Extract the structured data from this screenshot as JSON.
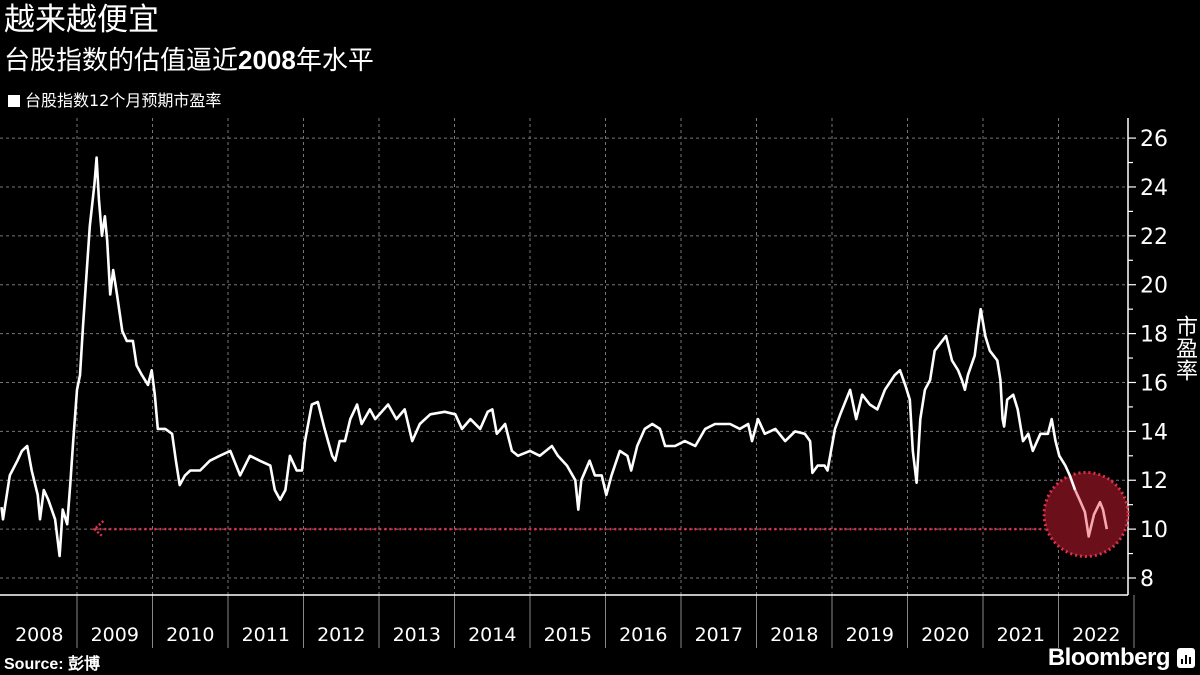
{
  "header": {
    "title": "越来越便宜",
    "subtitle_pre": "台股指数的估值逼近",
    "subtitle_num": "2008",
    "subtitle_post": "年水平"
  },
  "footer": {
    "source_label": "Source: ",
    "source_value": "彭博",
    "brand": "Bloomberg"
  },
  "colors": {
    "line": "#ffffff",
    "highlight": "#e0304a",
    "circle_fill": "#6b0f1a",
    "highlight_line": "#f5a7b2",
    "grid": "#777777"
  },
  "chart_data": {
    "type": "line",
    "title": "越来越便宜",
    "subtitle": "台股指数的估值逼近2008年水平",
    "ylabel": "市盈率",
    "xlabel": "",
    "ylim": [
      8,
      26.6
    ],
    "xlim": [
      2008,
      2023
    ],
    "yticks": [
      8,
      10,
      12,
      14,
      16,
      18,
      20,
      22,
      24,
      26
    ],
    "xtick_labels": [
      "2008",
      "2009",
      "2010",
      "2011",
      "2012",
      "2013",
      "2014",
      "2015",
      "2016",
      "2017",
      "2018",
      "2019",
      "2020",
      "2021",
      "2022"
    ],
    "grid": true,
    "legend": {
      "position": "top-left",
      "entries": [
        "台股指数12个月预期市盈率"
      ]
    },
    "annotations": {
      "reference_value": 10,
      "reference_from_year": 2009.23,
      "highlight_region": {
        "x": [
          2021.98,
          2022.75
        ],
        "y": [
          9,
          12.2
        ]
      }
    },
    "series": [
      {
        "name": "台股指数12个月预期市盈率",
        "points": [
          [
            2008.0,
            10.9
          ],
          [
            2008.02,
            10.4
          ],
          [
            2008.11,
            12.2
          ],
          [
            2008.21,
            12.8
          ],
          [
            2008.27,
            13.2
          ],
          [
            2008.34,
            13.4
          ],
          [
            2008.4,
            12.4
          ],
          [
            2008.48,
            11.4
          ],
          [
            2008.51,
            10.4
          ],
          [
            2008.56,
            11.6
          ],
          [
            2008.62,
            11.2
          ],
          [
            2008.71,
            10.4
          ],
          [
            2008.77,
            8.9
          ],
          [
            2008.81,
            10.8
          ],
          [
            2008.87,
            10.2
          ],
          [
            2008.91,
            11.8
          ],
          [
            2008.95,
            13.6
          ],
          [
            2009.0,
            15.7
          ],
          [
            2009.04,
            16.3
          ],
          [
            2009.08,
            18.3
          ],
          [
            2009.13,
            20.6
          ],
          [
            2009.17,
            22.4
          ],
          [
            2009.23,
            24.1
          ],
          [
            2009.26,
            25.2
          ],
          [
            2009.29,
            23.5
          ],
          [
            2009.33,
            22.0
          ],
          [
            2009.37,
            22.8
          ],
          [
            2009.4,
            21.8
          ],
          [
            2009.44,
            19.6
          ],
          [
            2009.48,
            20.6
          ],
          [
            2009.53,
            19.6
          ],
          [
            2009.6,
            18.1
          ],
          [
            2009.66,
            17.7
          ],
          [
            2009.74,
            17.7
          ],
          [
            2009.79,
            16.7
          ],
          [
            2009.86,
            16.3
          ],
          [
            2009.94,
            15.9
          ],
          [
            2009.99,
            16.5
          ],
          [
            2010.03,
            15.5
          ],
          [
            2010.07,
            14.1
          ],
          [
            2010.17,
            14.1
          ],
          [
            2010.26,
            13.9
          ],
          [
            2010.31,
            12.8
          ],
          [
            2010.36,
            11.8
          ],
          [
            2010.43,
            12.2
          ],
          [
            2010.5,
            12.4
          ],
          [
            2010.63,
            12.4
          ],
          [
            2010.76,
            12.8
          ],
          [
            2010.89,
            13.0
          ],
          [
            2011.03,
            13.2
          ],
          [
            2011.16,
            12.2
          ],
          [
            2011.29,
            13.0
          ],
          [
            2011.42,
            12.8
          ],
          [
            2011.56,
            12.6
          ],
          [
            2011.62,
            11.6
          ],
          [
            2011.69,
            11.2
          ],
          [
            2011.76,
            11.6
          ],
          [
            2011.82,
            13.0
          ],
          [
            2011.91,
            12.4
          ],
          [
            2011.98,
            12.4
          ],
          [
            2012.02,
            13.6
          ],
          [
            2012.11,
            15.1
          ],
          [
            2012.19,
            15.2
          ],
          [
            2012.28,
            14.1
          ],
          [
            2012.38,
            13.0
          ],
          [
            2012.42,
            12.8
          ],
          [
            2012.48,
            13.6
          ],
          [
            2012.55,
            13.6
          ],
          [
            2012.62,
            14.5
          ],
          [
            2012.71,
            15.1
          ],
          [
            2012.77,
            14.3
          ],
          [
            2012.88,
            14.9
          ],
          [
            2012.95,
            14.5
          ],
          [
            2013.12,
            15.1
          ],
          [
            2013.23,
            14.5
          ],
          [
            2013.34,
            14.9
          ],
          [
            2013.44,
            13.6
          ],
          [
            2013.54,
            14.3
          ],
          [
            2013.68,
            14.7
          ],
          [
            2013.87,
            14.8
          ],
          [
            2014.01,
            14.7
          ],
          [
            2014.1,
            14.1
          ],
          [
            2014.21,
            14.5
          ],
          [
            2014.34,
            14.1
          ],
          [
            2014.44,
            14.8
          ],
          [
            2014.5,
            14.9
          ],
          [
            2014.56,
            13.9
          ],
          [
            2014.67,
            14.3
          ],
          [
            2014.76,
            13.2
          ],
          [
            2014.84,
            13.0
          ],
          [
            2015.0,
            13.2
          ],
          [
            2015.13,
            13.0
          ],
          [
            2015.29,
            13.4
          ],
          [
            2015.37,
            13.0
          ],
          [
            2015.49,
            12.6
          ],
          [
            2015.6,
            12.0
          ],
          [
            2015.64,
            10.8
          ],
          [
            2015.68,
            12.0
          ],
          [
            2015.79,
            12.8
          ],
          [
            2015.86,
            12.2
          ],
          [
            2015.95,
            12.2
          ],
          [
            2016.01,
            11.4
          ],
          [
            2016.08,
            12.2
          ],
          [
            2016.19,
            13.2
          ],
          [
            2016.29,
            13.0
          ],
          [
            2016.34,
            12.4
          ],
          [
            2016.42,
            13.4
          ],
          [
            2016.52,
            14.1
          ],
          [
            2016.62,
            14.3
          ],
          [
            2016.72,
            14.1
          ],
          [
            2016.79,
            13.4
          ],
          [
            2016.92,
            13.4
          ],
          [
            2017.05,
            13.6
          ],
          [
            2017.19,
            13.4
          ],
          [
            2017.32,
            14.1
          ],
          [
            2017.45,
            14.3
          ],
          [
            2017.65,
            14.3
          ],
          [
            2017.78,
            14.1
          ],
          [
            2017.89,
            14.3
          ],
          [
            2017.94,
            13.6
          ],
          [
            2018.02,
            14.5
          ],
          [
            2018.11,
            13.9
          ],
          [
            2018.25,
            14.1
          ],
          [
            2018.38,
            13.6
          ],
          [
            2018.51,
            14.0
          ],
          [
            2018.64,
            13.9
          ],
          [
            2018.71,
            13.6
          ],
          [
            2018.74,
            12.3
          ],
          [
            2018.81,
            12.6
          ],
          [
            2018.9,
            12.6
          ],
          [
            2018.94,
            12.4
          ],
          [
            2019.04,
            14.1
          ],
          [
            2019.11,
            14.7
          ],
          [
            2019.24,
            15.7
          ],
          [
            2019.32,
            14.5
          ],
          [
            2019.4,
            15.5
          ],
          [
            2019.5,
            15.1
          ],
          [
            2019.6,
            14.9
          ],
          [
            2019.7,
            15.7
          ],
          [
            2019.83,
            16.3
          ],
          [
            2019.9,
            16.5
          ],
          [
            2019.97,
            15.9
          ],
          [
            2020.03,
            15.3
          ],
          [
            2020.07,
            13.2
          ],
          [
            2020.12,
            11.9
          ],
          [
            2020.17,
            14.5
          ],
          [
            2020.23,
            15.7
          ],
          [
            2020.3,
            16.1
          ],
          [
            2020.36,
            17.3
          ],
          [
            2020.46,
            17.7
          ],
          [
            2020.51,
            17.9
          ],
          [
            2020.59,
            16.9
          ],
          [
            2020.67,
            16.5
          ],
          [
            2020.72,
            16.1
          ],
          [
            2020.76,
            15.7
          ],
          [
            2020.8,
            16.3
          ],
          [
            2020.89,
            17.1
          ],
          [
            2020.93,
            18.1
          ],
          [
            2020.97,
            19.0
          ],
          [
            2021.03,
            17.9
          ],
          [
            2021.09,
            17.3
          ],
          [
            2021.19,
            16.9
          ],
          [
            2021.23,
            16.1
          ],
          [
            2021.26,
            14.5
          ],
          [
            2021.28,
            14.2
          ],
          [
            2021.32,
            15.3
          ],
          [
            2021.4,
            15.5
          ],
          [
            2021.46,
            14.9
          ],
          [
            2021.53,
            13.6
          ],
          [
            2021.6,
            13.9
          ],
          [
            2021.66,
            13.2
          ],
          [
            2021.76,
            13.9
          ],
          [
            2021.86,
            13.9
          ],
          [
            2021.91,
            14.5
          ],
          [
            2021.96,
            13.6
          ],
          [
            2022.01,
            13.0
          ],
          [
            2022.09,
            12.6
          ],
          [
            2022.15,
            12.2
          ],
          [
            2022.22,
            11.6
          ],
          [
            2022.28,
            11.2
          ],
          [
            2022.35,
            10.7
          ],
          [
            2022.4,
            9.7
          ],
          [
            2022.47,
            10.6
          ],
          [
            2022.55,
            11.1
          ],
          [
            2022.59,
            10.8
          ],
          [
            2022.64,
            10.0
          ]
        ]
      }
    ]
  }
}
